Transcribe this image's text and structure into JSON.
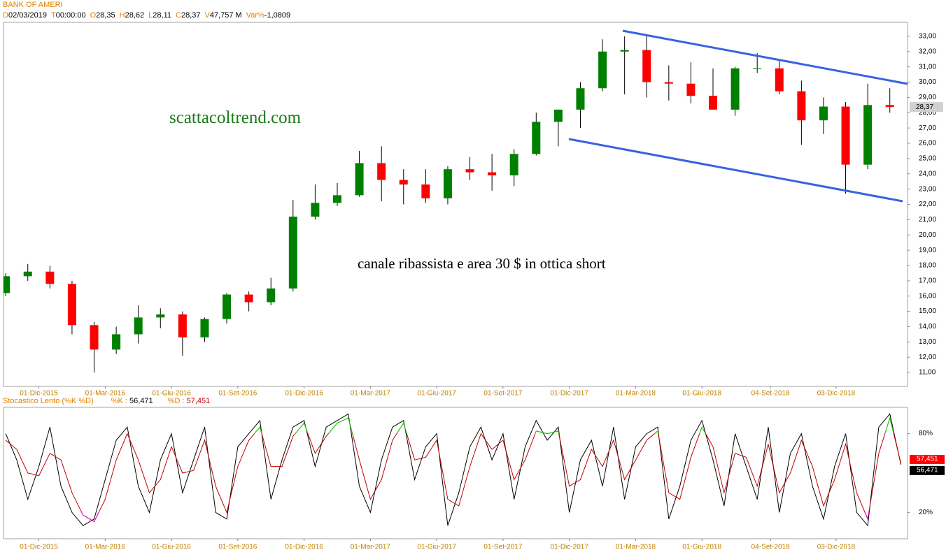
{
  "header": {
    "title": "BANK OF AMERI",
    "fields": [
      {
        "key": "D",
        "value": "02/03/2019"
      },
      {
        "key": "T",
        "value": "00:00:00"
      },
      {
        "key": "O",
        "value": "28,35"
      },
      {
        "key": "H",
        "value": "28,62"
      },
      {
        "key": "L",
        "value": "28,11"
      },
      {
        "key": "C",
        "value": "28,37"
      },
      {
        "key": "V",
        "value": "47,757 M"
      },
      {
        "key": "Var%",
        "value": "-1,0809"
      }
    ]
  },
  "chart_data": [
    {
      "type": "candlestick",
      "annotations": [
        "scattacoltrend.com",
        "canale ribassista e area 30 $ in ottica short"
      ],
      "up_color": "#008000",
      "down_color": "#ff0000",
      "wick_color": "#000000",
      "channel_color": "#3a62e0",
      "x": [
        0.5,
        1.5,
        2.5,
        3.5,
        4.5,
        5.5,
        6.5,
        7.5,
        8.5,
        9.5,
        10.5,
        11.5,
        12.5,
        13.5,
        14.5,
        15.5,
        16.5,
        17.5,
        18.5,
        19.5,
        20.5,
        21.5,
        22.5,
        23.5,
        24.5,
        25.5,
        26.5,
        27.5,
        28.5,
        29.5,
        30.5,
        31.5,
        32.5,
        33.5,
        34.5,
        35.5,
        36.5,
        37.5,
        38.5,
        39.5,
        40.5
      ],
      "open": [
        16.2,
        17.3,
        17.6,
        16.8,
        14.1,
        12.5,
        13.5,
        14.6,
        14.8,
        13.3,
        14.5,
        16.1,
        15.6,
        16.5,
        21.2,
        22.1,
        22.6,
        24.7,
        23.6,
        23.3,
        22.4,
        24.3,
        24.1,
        23.9,
        25.3,
        27.4,
        28.2,
        29.6,
        32.0,
        32.1,
        30.0,
        29.9,
        29.1,
        28.2,
        30.9,
        30.9,
        29.4,
        27.5,
        28.4,
        24.6,
        28.5
      ],
      "high": [
        17.5,
        18.1,
        18.0,
        17.0,
        14.3,
        14.0,
        15.4,
        15.2,
        15.0,
        14.6,
        16.2,
        16.3,
        17.2,
        22.3,
        23.3,
        23.4,
        25.5,
        25.8,
        24.3,
        24.3,
        24.5,
        25.1,
        25.3,
        25.6,
        28.0,
        28.2,
        30.0,
        32.8,
        33.0,
        33.1,
        31.1,
        31.3,
        30.9,
        31.0,
        31.9,
        31.5,
        30.1,
        29.0,
        28.7,
        29.9,
        29.6
      ],
      "low": [
        16.0,
        17.0,
        16.5,
        13.5,
        11.0,
        12.2,
        12.9,
        13.9,
        12.1,
        13.0,
        14.2,
        15.0,
        15.4,
        16.3,
        21.0,
        21.9,
        22.5,
        22.2,
        22.0,
        22.1,
        22.0,
        23.6,
        22.9,
        23.2,
        25.2,
        25.8,
        27.0,
        29.4,
        29.2,
        29.0,
        28.8,
        28.6,
        28.2,
        27.8,
        30.6,
        29.2,
        25.9,
        26.6,
        22.7,
        24.3,
        28.0
      ],
      "close": [
        17.3,
        17.6,
        16.8,
        14.1,
        12.5,
        13.5,
        14.6,
        14.8,
        13.3,
        14.5,
        16.1,
        15.6,
        16.5,
        21.2,
        22.1,
        22.6,
        24.7,
        23.6,
        23.3,
        22.4,
        24.3,
        24.1,
        23.9,
        25.3,
        27.4,
        28.2,
        29.6,
        32.0,
        32.1,
        30.0,
        29.9,
        29.1,
        28.2,
        30.9,
        30.9,
        29.4,
        27.5,
        28.4,
        24.6,
        28.5,
        28.37
      ],
      "last_price": {
        "value": 28.37,
        "label": "28,37"
      },
      "xlim": [
        0.4,
        41.3
      ],
      "xticks": [
        {
          "value": 2,
          "label": "01-Dic-2015"
        },
        {
          "value": 5,
          "label": "01-Mar-2016"
        },
        {
          "value": 8,
          "label": "01-Giu-2016"
        },
        {
          "value": 11,
          "label": "01-Set-2016"
        },
        {
          "value": 14,
          "label": "01-Dic-2016"
        },
        {
          "value": 17,
          "label": "01-Mar-2017"
        },
        {
          "value": 20,
          "label": "01-Giu-2017"
        },
        {
          "value": 23,
          "label": "01-Set-2017"
        },
        {
          "value": 26,
          "label": "01-Dic-2017"
        },
        {
          "value": 29,
          "label": "01-Mar-2018"
        },
        {
          "value": 32,
          "label": "01-Giu-2018"
        },
        {
          "value": 35.1,
          "label": "04-Set-2018"
        },
        {
          "value": 38.07,
          "label": "03-Dic-2018"
        }
      ],
      "ylim": [
        10.09,
        33.91
      ],
      "yticks": [
        {
          "value": 11,
          "label": "11,00"
        },
        {
          "value": 12,
          "label": "12,00"
        },
        {
          "value": 13,
          "label": "13,00"
        },
        {
          "value": 14,
          "label": "14,00"
        },
        {
          "value": 15,
          "label": "15,00"
        },
        {
          "value": 16,
          "label": "16,00"
        },
        {
          "value": 17,
          "label": "17,00"
        },
        {
          "value": 18,
          "label": "18,00"
        },
        {
          "value": 19,
          "label": "19,00"
        },
        {
          "value": 20,
          "label": "20,00"
        },
        {
          "value": 21,
          "label": "21,00"
        },
        {
          "value": 22,
          "label": "22,00"
        },
        {
          "value": 23,
          "label": "23,00"
        },
        {
          "value": 24,
          "label": "24,00"
        },
        {
          "value": 25,
          "label": "25,00"
        },
        {
          "value": 26,
          "label": "26,00"
        },
        {
          "value": 27,
          "label": "27,00"
        },
        {
          "value": 28,
          "label": "28,00"
        },
        {
          "value": 29,
          "label": "29,00"
        },
        {
          "value": 30,
          "label": "30,00"
        },
        {
          "value": 31,
          "label": "31,00"
        },
        {
          "value": 32,
          "label": "32,00"
        },
        {
          "value": 33,
          "label": "33,00"
        }
      ]
    },
    {
      "type": "line",
      "title": "Stocastico Lento (%K %D)",
      "overbought_color": "#00e000",
      "oversold_color": "#e000e0",
      "x": [
        0.5,
        1.0,
        1.5,
        2.0,
        2.5,
        3.0,
        3.5,
        4.0,
        4.5,
        5.0,
        5.5,
        6.0,
        6.5,
        7.0,
        7.5,
        8.0,
        8.5,
        9.0,
        9.5,
        10.0,
        10.5,
        11.0,
        11.5,
        12.0,
        12.5,
        13.0,
        13.5,
        14.0,
        14.5,
        15.0,
        15.5,
        16.0,
        16.5,
        17.0,
        17.5,
        18.0,
        18.5,
        19.0,
        19.5,
        20.0,
        20.5,
        21.0,
        21.5,
        22.0,
        22.5,
        23.0,
        23.5,
        24.0,
        24.5,
        25.0,
        25.5,
        26.0,
        26.5,
        27.0,
        27.5,
        28.0,
        28.5,
        29.0,
        29.5,
        30.0,
        30.5,
        31.0,
        31.5,
        32.0,
        32.5,
        33.0,
        33.5,
        34.0,
        34.5,
        35.0,
        35.5,
        36.0,
        36.5,
        37.0,
        37.5,
        38.0,
        38.5,
        39.0,
        39.5,
        40.0,
        40.5,
        41.0
      ],
      "series": [
        {
          "name": "%K :",
          "color": "#000000",
          "last_label": "56,471",
          "values": [
            80,
            60,
            30,
            55,
            85,
            40,
            20,
            10,
            15,
            45,
            75,
            85,
            40,
            20,
            60,
            80,
            35,
            60,
            85,
            20,
            15,
            70,
            80,
            90,
            30,
            60,
            85,
            90,
            55,
            85,
            90,
            95,
            40,
            20,
            60,
            85,
            90,
            45,
            70,
            80,
            10,
            35,
            70,
            85,
            60,
            80,
            30,
            70,
            90,
            75,
            85,
            20,
            60,
            75,
            40,
            85,
            30,
            70,
            80,
            85,
            15,
            40,
            75,
            90,
            60,
            25,
            80,
            55,
            30,
            85,
            20,
            65,
            80,
            40,
            15,
            55,
            80,
            20,
            10,
            85,
            95,
            56.471
          ]
        },
        {
          "name": "%D :",
          "color": "#c00000",
          "last_label": "57,451",
          "values": [
            75,
            68,
            50,
            48,
            65,
            60,
            35,
            18,
            13,
            30,
            60,
            80,
            60,
            35,
            45,
            70,
            50,
            52,
            75,
            40,
            20,
            55,
            75,
            85,
            55,
            55,
            78,
            88,
            65,
            78,
            88,
            92,
            60,
            30,
            45,
            75,
            88,
            60,
            62,
            75,
            30,
            25,
            55,
            80,
            68,
            75,
            45,
            60,
            82,
            80,
            82,
            40,
            45,
            68,
            55,
            75,
            45,
            60,
            75,
            82,
            35,
            30,
            62,
            85,
            70,
            35,
            65,
            62,
            40,
            72,
            35,
            50,
            75,
            55,
            25,
            45,
            72,
            35,
            15,
            65,
            92,
            57.451
          ]
        }
      ],
      "xlim": [
        0.4,
        41.3
      ],
      "xticks": [
        {
          "value": 2,
          "label": "01-Dic-2015"
        },
        {
          "value": 5,
          "label": "01-Mar-2016"
        },
        {
          "value": 8,
          "label": "01-Giu-2016"
        },
        {
          "value": 11,
          "label": "01-Set-2016"
        },
        {
          "value": 14,
          "label": "01-Dic-2016"
        },
        {
          "value": 17,
          "label": "01-Mar-2017"
        },
        {
          "value": 20,
          "label": "01-Giu-2017"
        },
        {
          "value": 23,
          "label": "01-Set-2017"
        },
        {
          "value": 26,
          "label": "01-Dic-2017"
        },
        {
          "value": 29,
          "label": "01-Mar-2018"
        },
        {
          "value": 32,
          "label": "01-Giu-2018"
        },
        {
          "value": 35.1,
          "label": "04-Set-2018"
        },
        {
          "value": 38.07,
          "label": "03-Dic-2018"
        }
      ],
      "ylim": [
        0,
        100
      ],
      "yticks": [
        {
          "value": 20,
          "label": "20%"
        },
        {
          "value": 80,
          "label": "80%"
        }
      ]
    }
  ]
}
